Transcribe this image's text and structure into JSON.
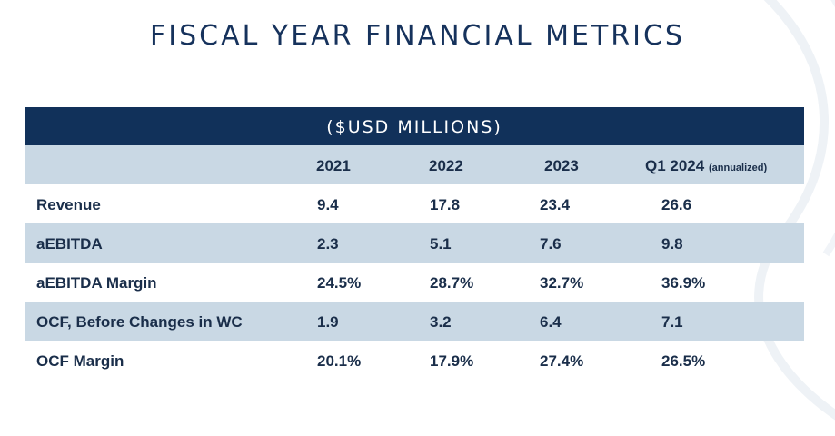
{
  "title": "FISCAL YEAR FINANCIAL METRICS",
  "table": {
    "units": "($USD MILLIONS)",
    "columns": [
      {
        "label": "2021",
        "note": ""
      },
      {
        "label": "2022",
        "note": ""
      },
      {
        "label": "2023",
        "note": ""
      },
      {
        "label": "Q1 2024",
        "note": "(annualized)"
      }
    ],
    "rows": [
      {
        "label": "Revenue",
        "values": [
          "9.4",
          "17.8",
          "23.4",
          "26.6"
        ]
      },
      {
        "label": "aEBITDA",
        "values": [
          "2.3",
          "5.1",
          "7.6",
          "9.8"
        ]
      },
      {
        "label": "aEBITDA Margin",
        "values": [
          "24.5%",
          "28.7%",
          "32.7%",
          "36.9%"
        ]
      },
      {
        "label": "OCF, Before Changes in WC",
        "values": [
          "1.9",
          "3.2",
          "6.4",
          "7.1"
        ]
      },
      {
        "label": "OCF Margin",
        "values": [
          "20.1%",
          "17.9%",
          "27.4%",
          "26.5%"
        ]
      }
    ]
  },
  "colors": {
    "navy": "#11315a",
    "shade": "#c9d8e4",
    "text": "#1a2e4a"
  }
}
